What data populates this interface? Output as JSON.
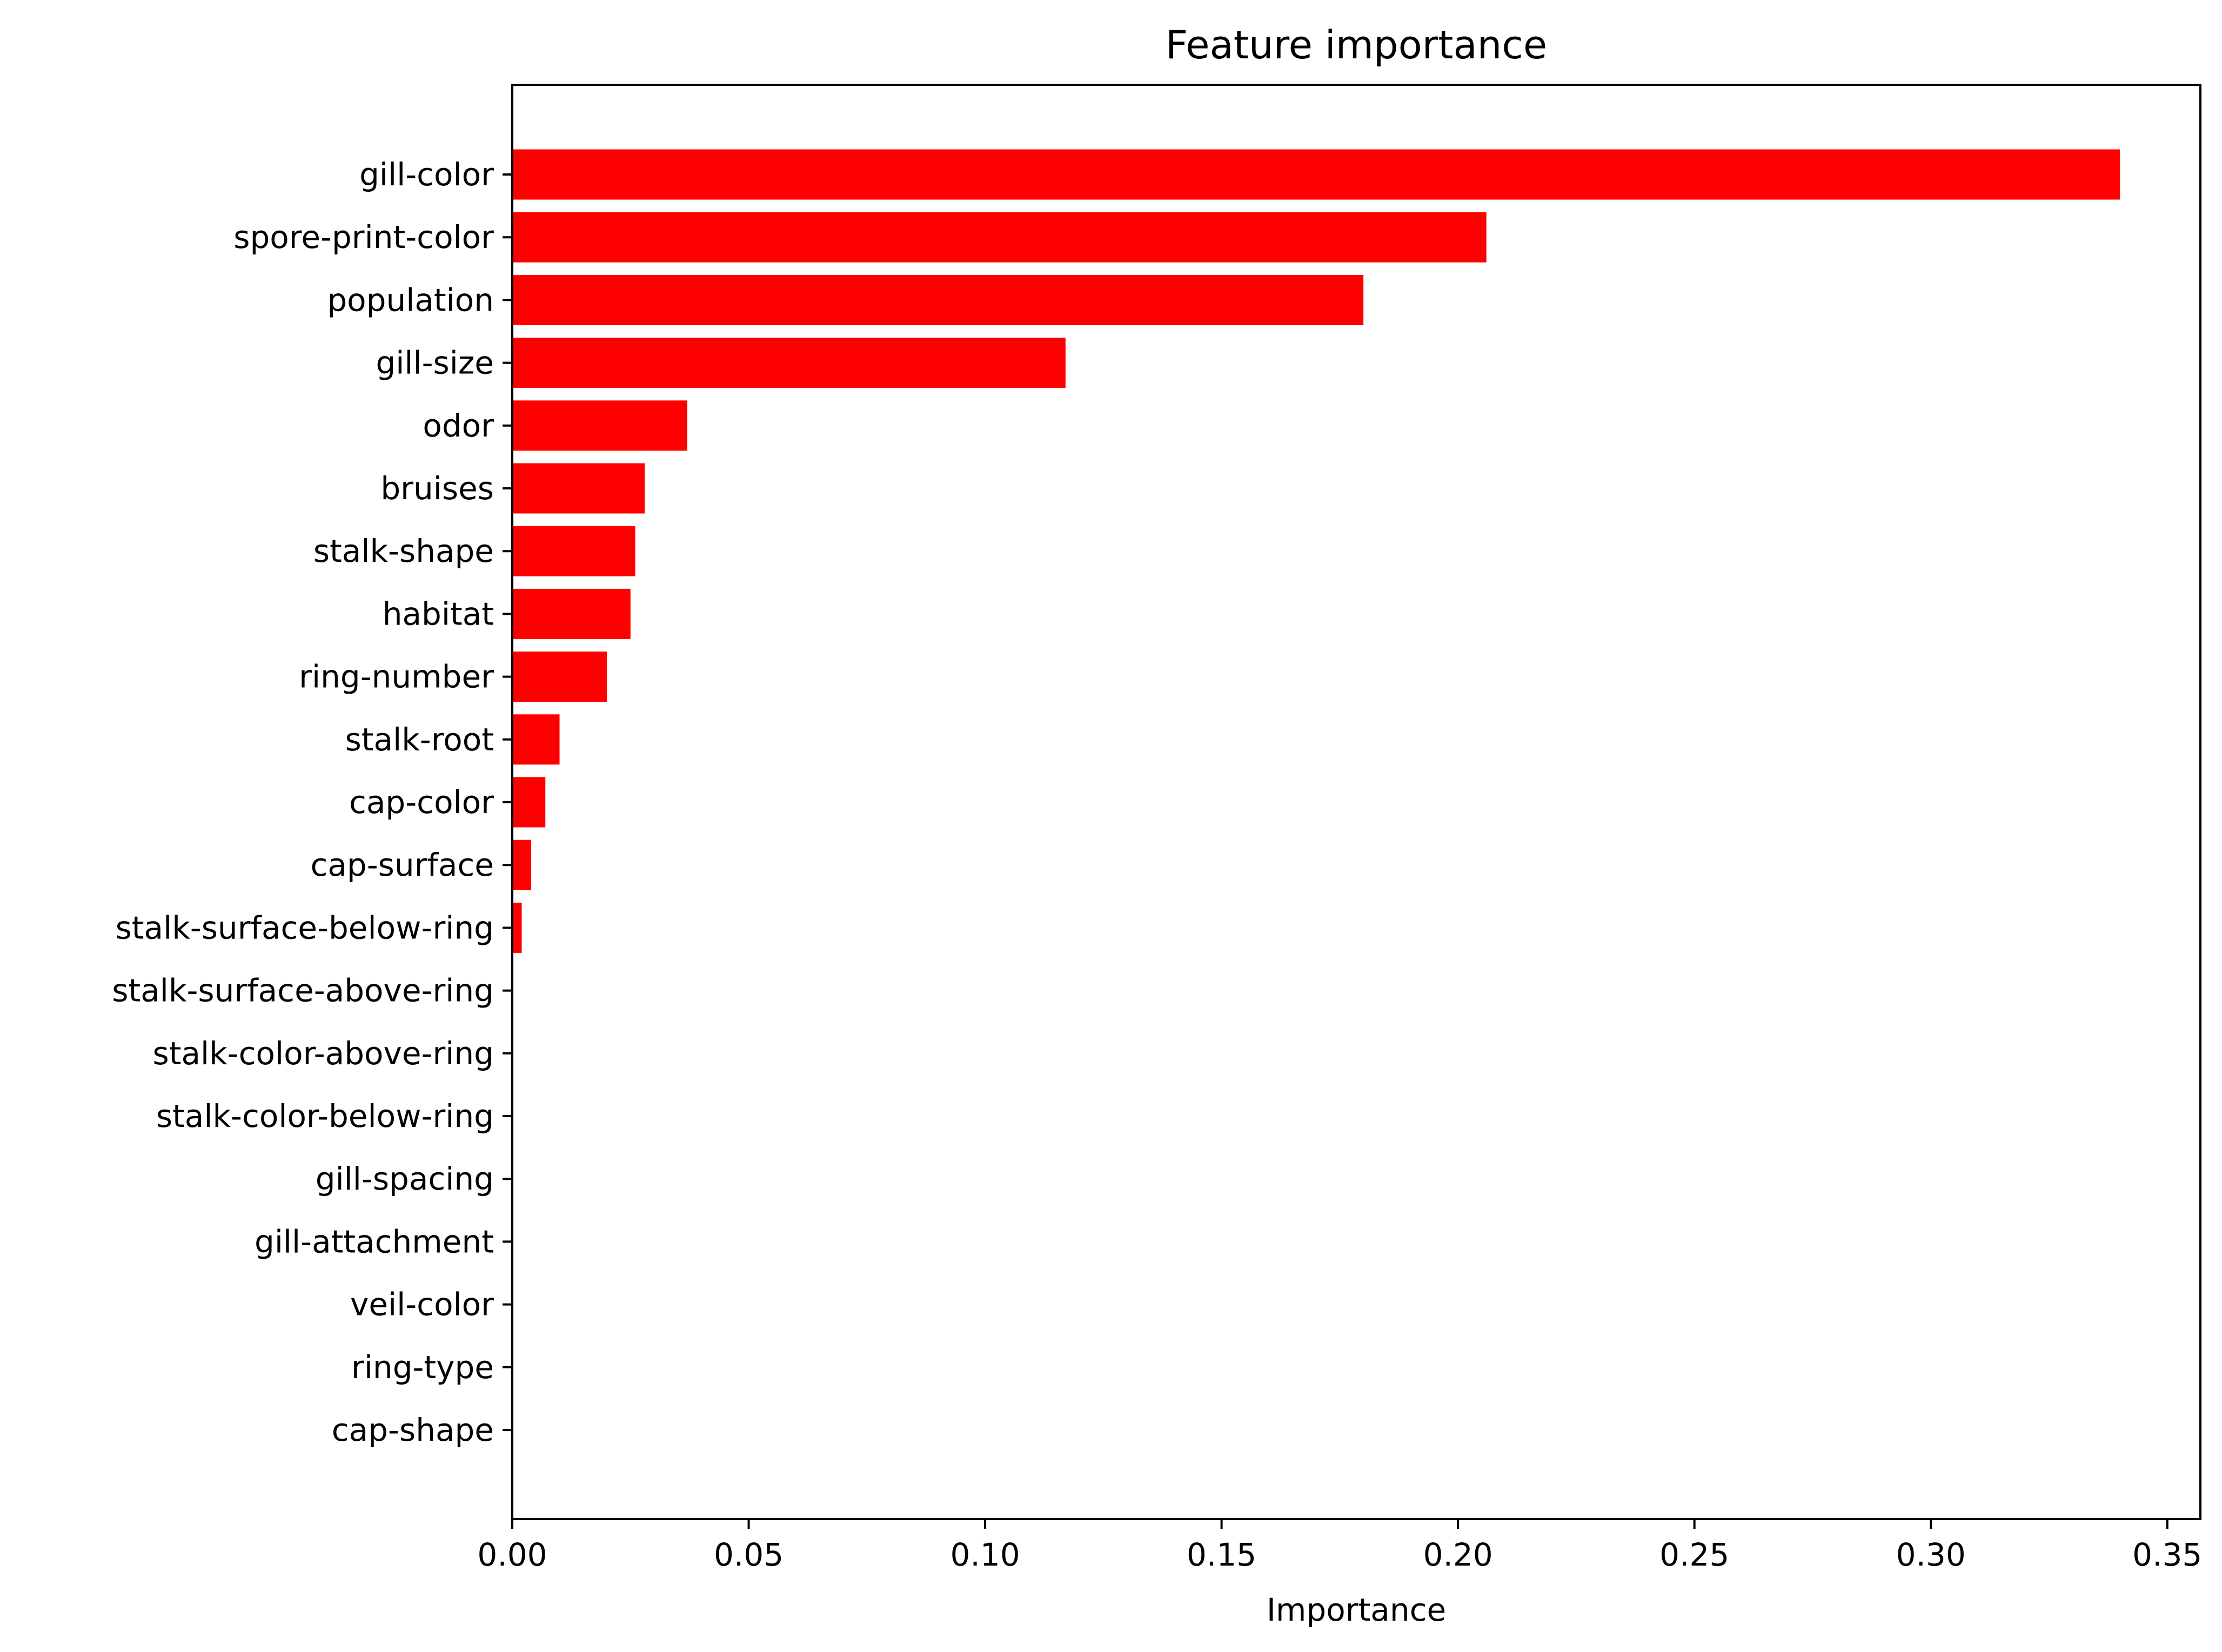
{
  "chart_data": {
    "type": "bar",
    "orientation": "horizontal",
    "title": "Feature importance",
    "xlabel": "Importance",
    "ylabel": "",
    "xlim": [
      0,
      0.357
    ],
    "xticks": [
      0.0,
      0.05,
      0.1,
      0.15,
      0.2,
      0.25,
      0.3,
      0.35
    ],
    "xtick_labels": [
      "0.00",
      "0.05",
      "0.10",
      "0.15",
      "0.20",
      "0.25",
      "0.30",
      "0.35"
    ],
    "categories": [
      "gill-color",
      "spore-print-color",
      "population",
      "gill-size",
      "odor",
      "bruises",
      "stalk-shape",
      "habitat",
      "ring-number",
      "stalk-root",
      "cap-color",
      "cap-surface",
      "stalk-surface-below-ring",
      "stalk-surface-above-ring",
      "stalk-color-above-ring",
      "stalk-color-below-ring",
      "gill-spacing",
      "gill-attachment",
      "veil-color",
      "ring-type",
      "cap-shape"
    ],
    "values": [
      0.34,
      0.206,
      0.18,
      0.117,
      0.037,
      0.028,
      0.026,
      0.025,
      0.02,
      0.01,
      0.007,
      0.004,
      0.002,
      0.0,
      0.0,
      0.0,
      0.0,
      0.0,
      0.0,
      0.0,
      0.0
    ],
    "bar_color": "#ff0000",
    "grid": false,
    "legend": "none"
  }
}
